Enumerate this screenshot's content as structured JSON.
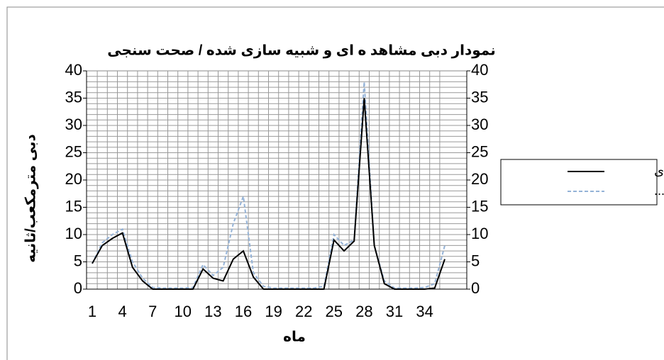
{
  "chart_data": {
    "type": "line",
    "title": "نمودار دبی مشاهد ه ای و شبیه سازی شده / صحت سنجی",
    "x_label": "ماه",
    "y_label": "دبی مترمکعب/ثانیه",
    "categories": [
      1,
      null,
      null,
      4,
      null,
      null,
      7,
      null,
      null,
      10,
      null,
      null,
      13,
      null,
      null,
      16,
      null,
      null,
      19,
      null,
      null,
      22,
      null,
      null,
      25,
      null,
      null,
      28,
      null,
      null,
      31,
      null,
      null,
      34,
      null,
      null
    ],
    "series": [
      {
        "name": "مشاهده ای",
        "color": "#000000",
        "dash": false,
        "values": [
          4.7,
          8,
          9.3,
          10.3,
          4,
          1.5,
          0,
          0,
          0,
          0,
          0,
          3.7,
          2,
          1.5,
          5.5,
          7,
          2.2,
          0,
          0,
          0,
          0,
          0,
          0,
          0,
          9,
          7,
          8.8,
          35,
          8,
          1,
          0,
          0,
          0,
          0,
          0.2,
          5.5
        ]
      },
      {
        "name": "شبیه...",
        "color": "#95b3d7",
        "dash": true,
        "values": [
          4.7,
          8.5,
          10,
          11,
          5,
          2,
          0.3,
          0.2,
          0.2,
          0.2,
          0.3,
          4.5,
          2.5,
          4,
          12,
          17,
          3,
          0.5,
          0.2,
          0.2,
          0.2,
          0.2,
          0.2,
          0.5,
          10,
          8,
          9,
          38,
          8,
          1.5,
          0.2,
          0.2,
          0.2,
          0.3,
          1,
          8
        ]
      }
    ],
    "ylim": [
      0,
      40
    ],
    "yticks": [
      0,
      5,
      10,
      15,
      20,
      25,
      30,
      35,
      40
    ],
    "y2lim": [
      0,
      40
    ],
    "y2ticks": [
      0,
      5,
      10,
      15,
      20,
      25,
      30,
      35,
      40
    ],
    "minor_grid_step": 1,
    "grid": true,
    "legend": "right"
  }
}
